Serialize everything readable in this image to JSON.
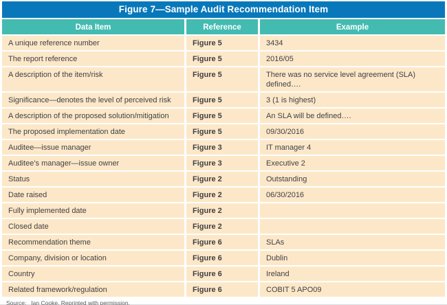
{
  "title": "Figure 7—Sample Audit Recommendation Item",
  "table": {
    "headers": [
      "Data Item",
      "Reference",
      "Example"
    ],
    "rows": [
      {
        "item": "A unique reference number",
        "reference": "Figure 5",
        "example": "3434"
      },
      {
        "item": "The report reference",
        "reference": "Figure 5",
        "example": "2016/05"
      },
      {
        "item": "A description of the item/risk",
        "reference": "Figure 5",
        "example": "There was no service level agreement (SLA) defined…."
      },
      {
        "item": "Significance—denotes the level of perceived risk",
        "reference": "Figure 5",
        "example": "3 (1 is highest)"
      },
      {
        "item": "A description of the proposed solution/mitigation",
        "reference": "Figure 5",
        "example": "An SLA will be defined…."
      },
      {
        "item": "The proposed implementation date",
        "reference": "Figure 5",
        "example": "09/30/2016"
      },
      {
        "item": "Auditee—issue manager",
        "reference": "Figure 3",
        "example": "IT manager 4"
      },
      {
        "item": "Auditee’s manager—issue owner",
        "reference": "Figure 3",
        "example": "Executive 2"
      },
      {
        "item": "Status",
        "reference": "Figure 2",
        "example": "Outstanding"
      },
      {
        "item": "Date raised",
        "reference": "Figure 2",
        "example": "06/30/2016"
      },
      {
        "item": "Fully implemented date",
        "reference": "Figure 2",
        "example": ""
      },
      {
        "item": "Closed date",
        "reference": "Figure 2",
        "example": ""
      },
      {
        "item": "Recommendation theme",
        "reference": "Figure 6",
        "example": "SLAs"
      },
      {
        "item": "Company, division or location",
        "reference": "Figure 6",
        "example": "Dublin"
      },
      {
        "item": "Country",
        "reference": "Figure 6",
        "example": "Ireland"
      },
      {
        "item": "Related framework/regulation",
        "reference": "Figure 6",
        "example": "COBIT 5 APO09"
      }
    ]
  },
  "source": {
    "label": "Source:",
    "text": "Ian Cooke. Reprinted with permission."
  },
  "colors": {
    "title_bg": "#0878BB",
    "header_bg": "#44BBB1",
    "row_bg": "#FCE8C9",
    "cell_text": "#414042",
    "source_text": "#58595B"
  }
}
